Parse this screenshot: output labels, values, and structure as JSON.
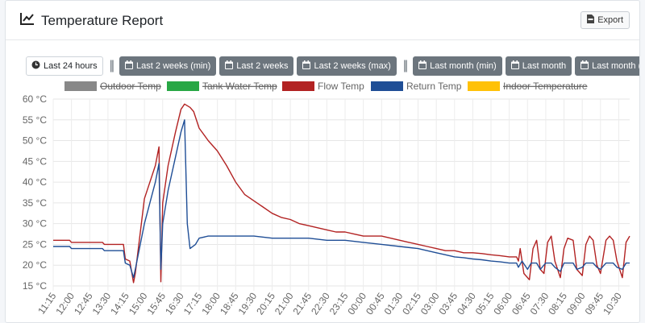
{
  "header": {
    "title": "Temperature Report",
    "export_label": "Export"
  },
  "range_buttons": [
    {
      "label": "Last 24 hours",
      "icon": "clock-icon",
      "style": "light"
    },
    {
      "label": "Last 2 weeks (min)",
      "icon": "calendar-icon",
      "style": "dark"
    },
    {
      "label": "Last 2 weeks",
      "icon": "calendar-icon",
      "style": "dark"
    },
    {
      "label": "Last 2 weeks (max)",
      "icon": "calendar-icon",
      "style": "dark"
    },
    {
      "label": "Last month (min)",
      "icon": "calendar-icon",
      "style": "dark"
    },
    {
      "label": "Last month",
      "icon": "calendar-icon",
      "style": "dark"
    },
    {
      "label": "Last month (max)",
      "icon": "calendar-icon",
      "style": "dark"
    }
  ],
  "separator": "||",
  "chart_data": {
    "type": "line",
    "ylim": [
      15,
      60
    ],
    "yticks": [
      "15 °C",
      "20 °C",
      "25 °C",
      "30 °C",
      "35 °C",
      "40 °C",
      "45 °C",
      "50 °C",
      "55 °C",
      "60 °C"
    ],
    "xticks": [
      "11:15",
      "12:00",
      "12:45",
      "13:30",
      "14:15",
      "15:00",
      "15:45",
      "16:30",
      "17:15",
      "18:00",
      "18:45",
      "19:30",
      "20:15",
      "21:00",
      "21:45",
      "22:30",
      "23:15",
      "00:00",
      "00:45",
      "01:30",
      "02:15",
      "03:00",
      "03:45",
      "04:30",
      "05:15",
      "06:00",
      "06:45",
      "07:30",
      "08:15",
      "09:00",
      "09:45",
      "10:30"
    ],
    "x_range": [
      0,
      31.6
    ],
    "grid": true,
    "legend_position": "top",
    "series": [
      {
        "name": "Outdoor Temp",
        "color": "#888888",
        "hidden": true,
        "points": []
      },
      {
        "name": "Tank Water Temp",
        "color": "#28a745",
        "hidden": true,
        "points": []
      },
      {
        "name": "Flow Temp",
        "color": "#b22222",
        "hidden": false,
        "points": [
          [
            0,
            26
          ],
          [
            0.9,
            26
          ],
          [
            1,
            25.5
          ],
          [
            2.7,
            25.5
          ],
          [
            2.8,
            25
          ],
          [
            3.85,
            25
          ],
          [
            3.95,
            21.5
          ],
          [
            4.2,
            21
          ],
          [
            4.4,
            15.8
          ],
          [
            4.5,
            18
          ],
          [
            5,
            36
          ],
          [
            5.6,
            44
          ],
          [
            5.8,
            48.5
          ],
          [
            5.9,
            16
          ],
          [
            6,
            35
          ],
          [
            6.3,
            44
          ],
          [
            6.7,
            52
          ],
          [
            7,
            57.5
          ],
          [
            7.2,
            58.8
          ],
          [
            7.5,
            58
          ],
          [
            7.7,
            57
          ],
          [
            8,
            53
          ],
          [
            8.5,
            50
          ],
          [
            9,
            47.5
          ],
          [
            9.5,
            44
          ],
          [
            10,
            40
          ],
          [
            10.5,
            37
          ],
          [
            11,
            35.5
          ],
          [
            11.5,
            34
          ],
          [
            12,
            32.5
          ],
          [
            12.5,
            31.5
          ],
          [
            13,
            31
          ],
          [
            13.5,
            30
          ],
          [
            14,
            29.5
          ],
          [
            14.5,
            29
          ],
          [
            15,
            28.5
          ],
          [
            15.5,
            28
          ],
          [
            16,
            28
          ],
          [
            16.5,
            27.5
          ],
          [
            17,
            27
          ],
          [
            17.5,
            27
          ],
          [
            18,
            27
          ],
          [
            18.5,
            26.5
          ],
          [
            19,
            26
          ],
          [
            19.5,
            25.5
          ],
          [
            20,
            25
          ],
          [
            20.5,
            24.5
          ],
          [
            21,
            24
          ],
          [
            21.5,
            23.5
          ],
          [
            22,
            23.5
          ],
          [
            22.5,
            23
          ],
          [
            23,
            23
          ],
          [
            23.5,
            22.8
          ],
          [
            24,
            22.5
          ],
          [
            24.5,
            22.3
          ],
          [
            25,
            22
          ],
          [
            25.4,
            22
          ],
          [
            25.5,
            21
          ],
          [
            25.6,
            24
          ],
          [
            25.8,
            18
          ],
          [
            26.1,
            16.5
          ],
          [
            26.3,
            24
          ],
          [
            26.5,
            26
          ],
          [
            26.7,
            19
          ],
          [
            26.9,
            18
          ],
          [
            27.1,
            25.5
          ],
          [
            27.3,
            27
          ],
          [
            27.5,
            21
          ],
          [
            27.8,
            17
          ],
          [
            28,
            24
          ],
          [
            28.2,
            26.5
          ],
          [
            28.5,
            26
          ],
          [
            28.7,
            19
          ],
          [
            29,
            17.5
          ],
          [
            29.2,
            25
          ],
          [
            29.4,
            27
          ],
          [
            29.6,
            26
          ],
          [
            29.8,
            20
          ],
          [
            30,
            18
          ],
          [
            30.3,
            26
          ],
          [
            30.5,
            27
          ],
          [
            30.7,
            26
          ],
          [
            30.9,
            21
          ],
          [
            31.2,
            17
          ],
          [
            31.4,
            25.5
          ],
          [
            31.6,
            27
          ]
        ]
      },
      {
        "name": "Return Temp",
        "color": "#1f4e96",
        "hidden": false,
        "points": [
          [
            0,
            24.5
          ],
          [
            0.9,
            24.5
          ],
          [
            1,
            24
          ],
          [
            2.7,
            24
          ],
          [
            2.8,
            23.5
          ],
          [
            3.85,
            23.5
          ],
          [
            3.95,
            20.5
          ],
          [
            4.2,
            20
          ],
          [
            4.4,
            17
          ],
          [
            4.5,
            19
          ],
          [
            5,
            30
          ],
          [
            5.6,
            40
          ],
          [
            5.8,
            44.5
          ],
          [
            5.9,
            19
          ],
          [
            6,
            30
          ],
          [
            6.3,
            38
          ],
          [
            6.7,
            46
          ],
          [
            7,
            52
          ],
          [
            7.2,
            55
          ],
          [
            7.35,
            30
          ],
          [
            7.5,
            24
          ],
          [
            7.8,
            25
          ],
          [
            8,
            26.5
          ],
          [
            8.5,
            27
          ],
          [
            9,
            27
          ],
          [
            10,
            27
          ],
          [
            11,
            27
          ],
          [
            12,
            26.5
          ],
          [
            13,
            26.5
          ],
          [
            14,
            26.5
          ],
          [
            15,
            26
          ],
          [
            16,
            26
          ],
          [
            17,
            25.5
          ],
          [
            18,
            25
          ],
          [
            19,
            24.5
          ],
          [
            20,
            24
          ],
          [
            20.5,
            23.5
          ],
          [
            21,
            23
          ],
          [
            21.5,
            22.5
          ],
          [
            22,
            22
          ],
          [
            22.5,
            21.8
          ],
          [
            23,
            21.5
          ],
          [
            23.5,
            21.3
          ],
          [
            24,
            21
          ],
          [
            24.5,
            20.8
          ],
          [
            25,
            20.5
          ],
          [
            25.4,
            20.5
          ],
          [
            25.5,
            19.5
          ],
          [
            25.7,
            21
          ],
          [
            26,
            19
          ],
          [
            26.2,
            20.5
          ],
          [
            26.5,
            20.5
          ],
          [
            26.7,
            19
          ],
          [
            27,
            20.5
          ],
          [
            27.3,
            20.5
          ],
          [
            27.5,
            19.5
          ],
          [
            27.8,
            18.5
          ],
          [
            28,
            20.5
          ],
          [
            28.5,
            20.5
          ],
          [
            28.7,
            19
          ],
          [
            29,
            19.5
          ],
          [
            29.2,
            20.5
          ],
          [
            29.6,
            20.5
          ],
          [
            29.8,
            19.5
          ],
          [
            30,
            19
          ],
          [
            30.3,
            20.5
          ],
          [
            30.7,
            20.5
          ],
          [
            30.9,
            19.5
          ],
          [
            31.2,
            19
          ],
          [
            31.4,
            20.5
          ],
          [
            31.6,
            20.5
          ]
        ]
      },
      {
        "name": "Indoor Temperature",
        "color": "#ffc107",
        "hidden": true,
        "points": []
      }
    ]
  }
}
